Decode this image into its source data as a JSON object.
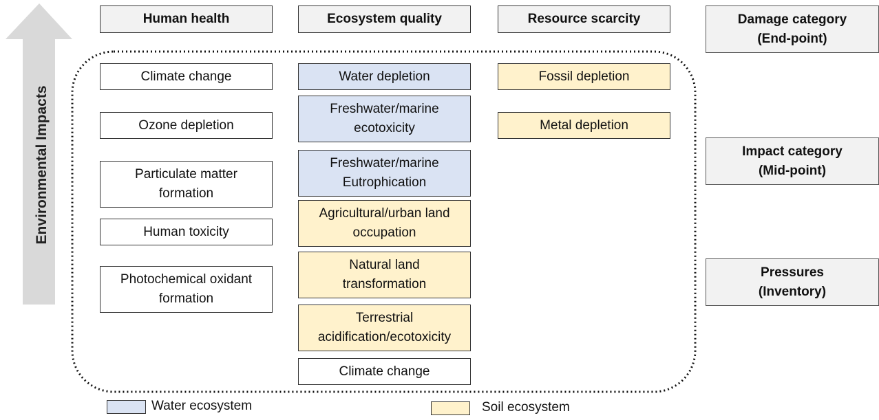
{
  "arrow": {
    "label": "Environmental Impacts"
  },
  "columns": [
    {
      "header": "Human health",
      "boxes": [
        {
          "lines": [
            "Climate change"
          ],
          "color": "#ffffff"
        },
        {
          "lines": [
            "Ozone depletion"
          ],
          "color": "#ffffff"
        },
        {
          "lines": [
            "Particulate matter",
            "formation"
          ],
          "color": "#ffffff"
        },
        {
          "lines": [
            "Human toxicity"
          ],
          "color": "#ffffff"
        },
        {
          "lines": [
            "Photochemical oxidant",
            "formation"
          ],
          "color": "#ffffff"
        }
      ]
    },
    {
      "header": "Ecosystem quality",
      "boxes": [
        {
          "lines": [
            "Water depletion"
          ],
          "color": "#dae3f3"
        },
        {
          "lines": [
            "Freshwater/marine",
            "ecotoxicity"
          ],
          "color": "#dae3f3"
        },
        {
          "lines": [
            "Freshwater/marine",
            "Eutrophication"
          ],
          "color": "#dae3f3"
        },
        {
          "lines": [
            "Agricultural/urban land",
            "occupation"
          ],
          "color": "#fff2cc"
        },
        {
          "lines": [
            "Natural land",
            "transformation"
          ],
          "color": "#fff2cc"
        },
        {
          "lines": [
            "Terrestrial",
            "acidification/ecotoxicity"
          ],
          "color": "#fff2cc"
        },
        {
          "lines": [
            "Climate change"
          ],
          "color": "#ffffff"
        }
      ]
    },
    {
      "header": "Resource scarcity",
      "boxes": [
        {
          "lines": [
            "Fossil depletion"
          ],
          "color": "#fff2cc"
        },
        {
          "lines": [
            "Metal depletion"
          ],
          "color": "#fff2cc"
        }
      ]
    }
  ],
  "levels": [
    {
      "lines": [
        "Damage category",
        "(End-point)"
      ]
    },
    {
      "lines": [
        "Impact category",
        "(Mid-point)"
      ]
    },
    {
      "lines": [
        "Pressures",
        "(Inventory)"
      ]
    }
  ],
  "legend": [
    {
      "label": "Water ecosystem",
      "color": "#dae3f3"
    },
    {
      "label": "Soil ecosystem",
      "color": "#fff2cc"
    }
  ]
}
